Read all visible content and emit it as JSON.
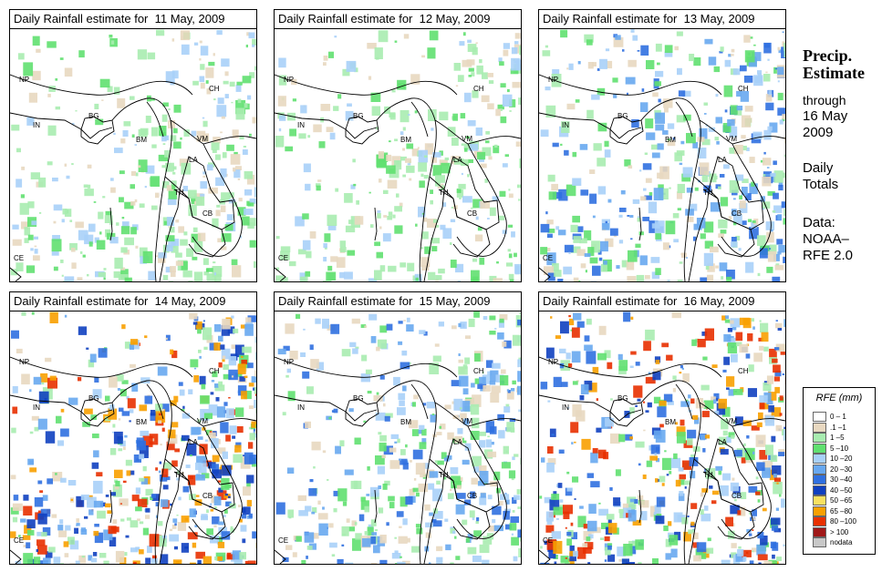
{
  "panels": [
    {
      "title": "Daily Rainfall estimate for  11 May, 2009",
      "level": 1
    },
    {
      "title": "Daily Rainfall estimate for  12 May, 2009",
      "level": 1
    },
    {
      "title": "Daily Rainfall estimate for  13 May, 2009",
      "level": 2
    },
    {
      "title": "Daily Rainfall estimate for  14 May, 2009",
      "level": 3
    },
    {
      "title": "Daily Rainfall estimate for  15 May, 2009",
      "level": 2
    },
    {
      "title": "Daily Rainfall estimate for  16 May, 2009",
      "level": 3
    }
  ],
  "country_labels": [
    "NP",
    "CH",
    "IN",
    "BG",
    "BM",
    "VM",
    "LA",
    "TH",
    "CB",
    "CE"
  ],
  "side": {
    "heading_line1": "Precip.",
    "heading_line2": "Estimate",
    "through": "through",
    "date_line1": "16 May",
    "date_line2": "2009",
    "totals_line1": "Daily",
    "totals_line2": "Totals",
    "data_line1": "Data:",
    "data_line2": "NOAA–",
    "data_line3": "RFE 2.0"
  },
  "legend": {
    "title": "RFE (mm)",
    "items": [
      {
        "label": "0 – 1",
        "color": "#ffffff"
      },
      {
        "label": ".1 –1",
        "color": "#e8d8c0"
      },
      {
        "label": "1 –5",
        "color": "#a8ecb0"
      },
      {
        "label": "5 –10",
        "color": "#60e070"
      },
      {
        "label": "10 –20",
        "color": "#a8d0f8"
      },
      {
        "label": "20 –30",
        "color": "#68a8f0"
      },
      {
        "label": "30 –40",
        "color": "#3070e0"
      },
      {
        "label": "40 –50",
        "color": "#1040c0"
      },
      {
        "label": "50 –65",
        "color": "#f8e060"
      },
      {
        "label": "65 –80",
        "color": "#f8a000"
      },
      {
        "label": "80 –100",
        "color": "#e83000"
      },
      {
        "label": "> 100",
        "color": "#a01818"
      },
      {
        "label": "nodata",
        "color": "#c8c8c8"
      }
    ]
  }
}
